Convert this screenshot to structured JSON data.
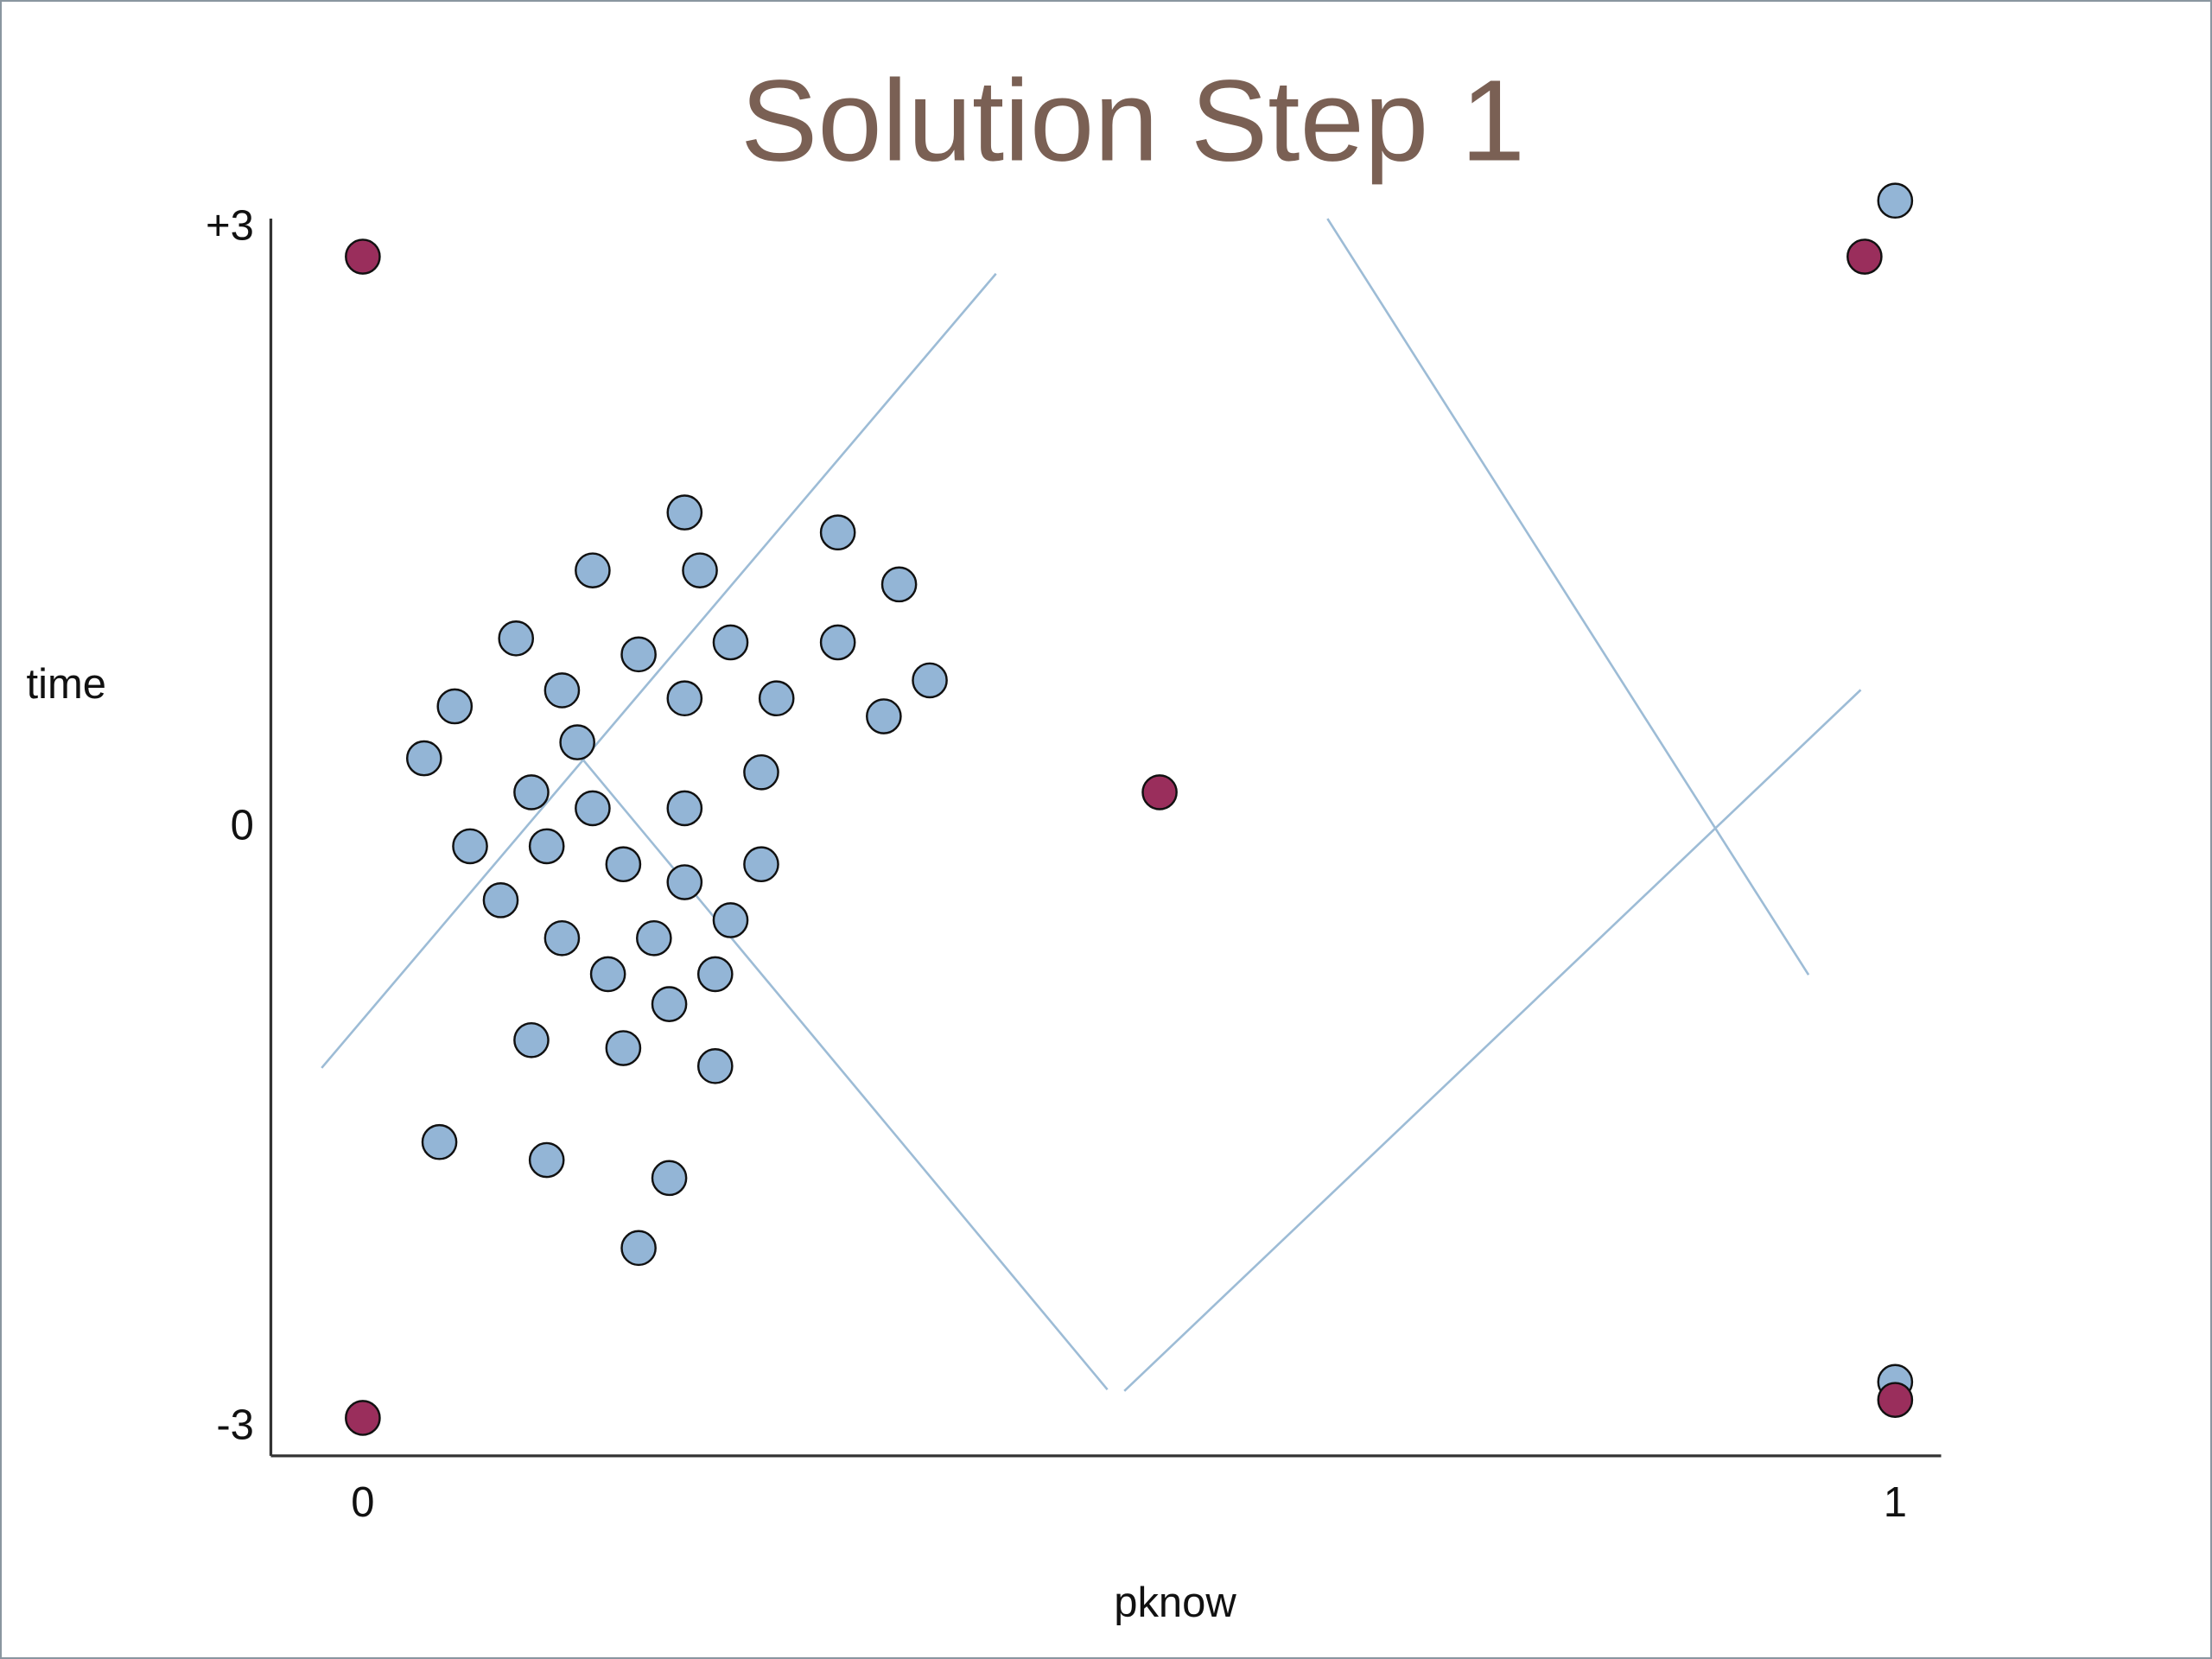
{
  "chart_data": {
    "type": "scatter",
    "title": "Solution Step 1",
    "x_label": "pknow",
    "y_label": "time",
    "xlim": [
      -0.06,
      1.03
    ],
    "ylim": [
      -3.14,
      3.05
    ],
    "xticks": [
      0,
      1
    ],
    "yticks": [
      {
        "value": 3,
        "label": "+3"
      },
      0,
      -3
    ],
    "grid": false,
    "series": [
      {
        "color": "#93b5d6",
        "x": [
          0.21,
          0.15,
          0.22,
          0.31,
          0.35,
          0.1,
          0.18,
          0.24,
          0.31,
          0.06,
          0.13,
          0.21,
          0.27,
          0.37,
          0.34,
          0.04,
          0.14,
          0.26,
          0.11,
          0.15,
          0.21,
          0.07,
          0.12,
          0.17,
          0.21,
          0.26,
          0.09,
          0.24,
          0.13,
          0.19,
          0.16,
          0.23,
          0.2,
          0.11,
          0.17,
          0.23,
          0.05,
          0.12,
          0.2,
          0.18,
          1.0,
          1.0
        ],
        "values": [
          1.58,
          1.29,
          1.29,
          1.48,
          1.22,
          0.95,
          0.87,
          0.93,
          0.93,
          0.61,
          0.69,
          0.65,
          0.65,
          0.74,
          0.56,
          0.35,
          0.43,
          0.28,
          0.18,
          0.1,
          0.1,
          -0.09,
          -0.09,
          -0.18,
          -0.27,
          -0.18,
          -0.36,
          -0.46,
          -0.55,
          -0.55,
          -0.73,
          -0.73,
          -0.88,
          -1.06,
          -1.1,
          -1.19,
          -1.57,
          -1.66,
          -1.75,
          -2.1,
          3.14,
          -2.77
        ]
      },
      {
        "color": "#9a2e5c",
        "x": [
          0.0,
          0.98,
          0.52,
          0.0,
          1.0
        ],
        "values": [
          2.86,
          2.86,
          0.18,
          -2.95,
          -2.86
        ]
      }
    ]
  }
}
